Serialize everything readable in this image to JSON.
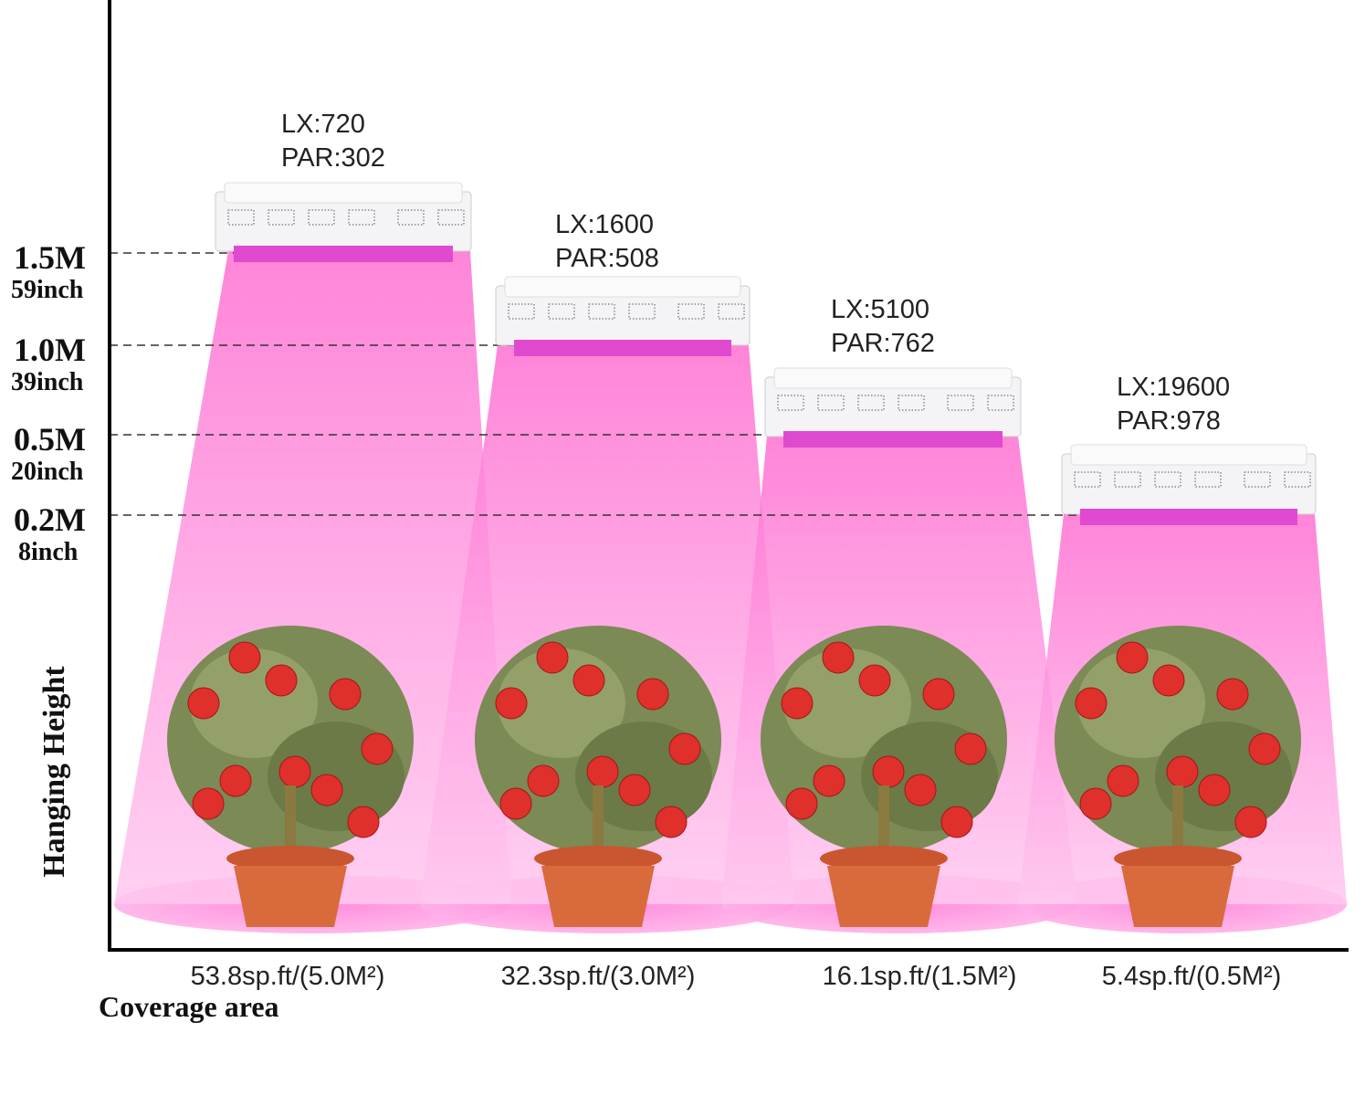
{
  "axis": {
    "vertical_title": "Hanging Height",
    "horizontal_title": "Coverage area"
  },
  "heights": [
    {
      "metric": "1.5M",
      "imperial": "59inch"
    },
    {
      "metric": "1.0M",
      "imperial": "39inch"
    },
    {
      "metric": "0.5M",
      "imperial": "20inch"
    },
    {
      "metric": "0.2M",
      "imperial": "8inch"
    }
  ],
  "lights": [
    {
      "lx": "LX:720",
      "par": "PAR:302",
      "coverage": "53.8sp.ft/(5.0M²)"
    },
    {
      "lx": "LX:1600",
      "par": "PAR:508",
      "coverage": "32.3sp.ft/(3.0M²)"
    },
    {
      "lx": "LX:5100",
      "par": "PAR:762",
      "coverage": "16.1sp.ft/(1.5M²)"
    },
    {
      "lx": "LX:19600",
      "par": "PAR:978",
      "coverage": "5.4sp.ft/(0.5M²)"
    }
  ]
}
